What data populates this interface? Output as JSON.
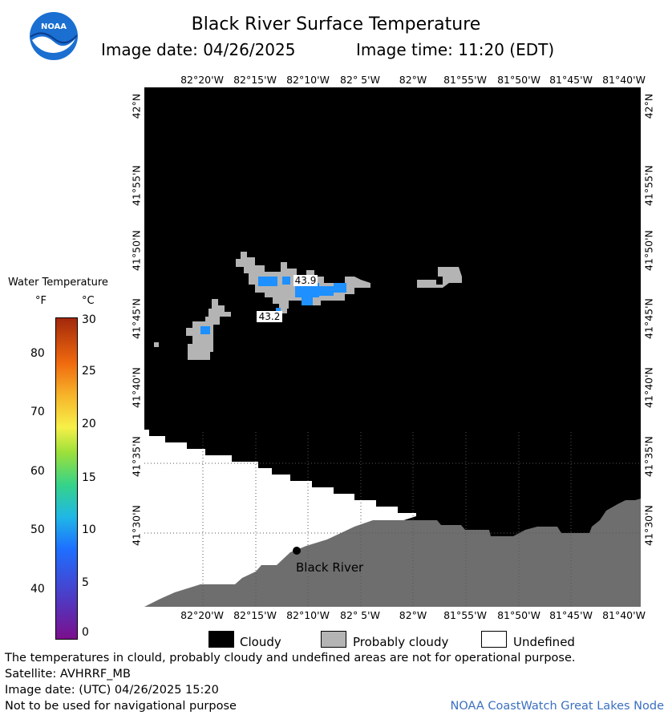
{
  "header": {
    "title": "Black River Surface Temperature",
    "image_date_label": "Image date: 04/26/2025",
    "image_time_label": "Image time: 11:20 (EDT)",
    "logo_text": "NOAA"
  },
  "map": {
    "lon_labels": [
      "82°20'W",
      "82°15'W",
      "82°10'W",
      "82° 5'W",
      "82°W",
      "81°55'W",
      "81°50'W",
      "81°45'W",
      "81°40'W"
    ],
    "lat_labels": [
      "42°N",
      "41°55'N",
      "41°50'N",
      "41°45'N",
      "41°40'N",
      "41°35'N",
      "41°30'N"
    ],
    "place_label": "Black River",
    "temperature_labels": [
      "43.9",
      "43.2"
    ],
    "colors": {
      "cloudy": "#000000",
      "probably_cloudy": "#b4b4b4",
      "land": "#6e6e6e",
      "undefined": "#ffffff",
      "water_43": "#1e90ff"
    }
  },
  "colorbar": {
    "title": "Water Temperature",
    "unit_f": "°F",
    "unit_c": "°C",
    "f_ticks": [
      "80",
      "70",
      "60",
      "50",
      "40"
    ],
    "c_ticks": [
      "30",
      "25",
      "20",
      "15",
      "10",
      "5",
      "0"
    ]
  },
  "legend": {
    "cloudy": "Cloudy",
    "probably_cloudy": "Probably cloudy",
    "undefined": "Undefined"
  },
  "footer": {
    "disclaimer": "The temperatures in clould, probably cloudy and undefined areas are not for operational purpose.",
    "satellite": "Satellite: AVHRRF_MB",
    "utc_date": "Image date: (UTC) 04/26/2025  15:20",
    "nav_warning": "Not to be used for navigational purpose",
    "credit": "NOAA CoastWatch Great Lakes Node"
  }
}
